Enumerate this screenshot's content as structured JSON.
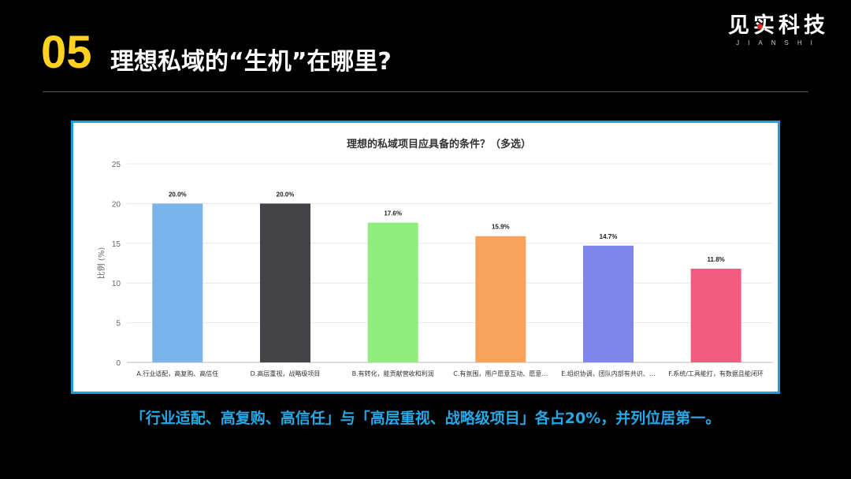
{
  "header": {
    "number": "05",
    "title": "理想私域的“生机”在哪里?",
    "brand_name": "见实科技",
    "brand_sub": "JIANSHI"
  },
  "colors": {
    "accent_yellow": "#ffd21f",
    "frame_blue": "#1f9be0",
    "caption_blue": "#25a9e6",
    "brand_red": "#e8262b"
  },
  "chart_data": {
    "type": "bar",
    "title": "理想的私域项目应具备的条件？（多选）",
    "ylabel": "比例 (%)",
    "xlabel": "",
    "ylim": [
      0,
      25
    ],
    "yticks": [
      0,
      5,
      10,
      15,
      20,
      25
    ],
    "grid": true,
    "categories": [
      "A.行业适配，高复购、高信任",
      "D.高层重视，战略级项目",
      "B.有转化，能贡献营收和利润",
      "C.有氛围，用户愿意互动、愿意…",
      "E.组织协调，团队内部有共识、…",
      "F.系统/工具能打，有数据且能闭环"
    ],
    "values": [
      20.0,
      20.0,
      17.6,
      15.9,
      14.7,
      11.8
    ],
    "value_labels": [
      "20.0%",
      "20.0%",
      "17.6%",
      "15.9%",
      "14.7%",
      "11.8%"
    ],
    "bar_colors": [
      "#7ab4ea",
      "#434348",
      "#90ed7d",
      "#f7a35c",
      "#8085e9",
      "#f15c80"
    ]
  },
  "caption": "「行业适配、高复购、高信任」与「高层重视、战略级项目」各占20%，并列位居第一。"
}
